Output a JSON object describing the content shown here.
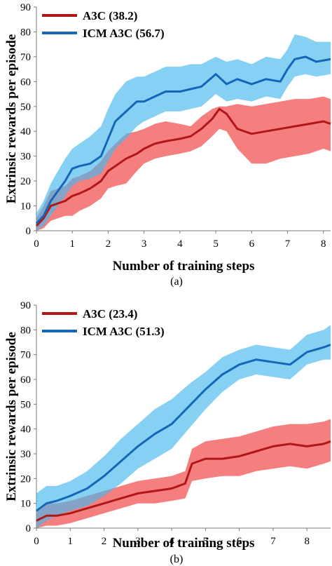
{
  "colors": {
    "a3c_line": "#b01818",
    "a3c_band": "#ef3b3b",
    "icm_line": "#1565b8",
    "icm_band": "#45b8ec",
    "axis": "#7a7a7a"
  },
  "chart_data": [
    {
      "type": "line",
      "caption": "(a)",
      "xlabel": "Number of training steps",
      "ylabel": "Extrinsic rewards per episode",
      "xlim": [
        0,
        8.2
      ],
      "ylim": [
        0,
        90
      ],
      "xticks": [
        "0",
        "1",
        "2",
        "3",
        "4",
        "5",
        "6",
        "7",
        "8"
      ],
      "yticks": [
        "0",
        "10",
        "20",
        "30",
        "40",
        "50",
        "60",
        "70",
        "80",
        "90"
      ],
      "legend_position": "top-left",
      "series": [
        {
          "name": "A3C (38.2)",
          "color": "#b01818",
          "band_color": "#ef3b3b",
          "x": [
            0,
            0.2,
            0.4,
            0.6,
            0.8,
            1.0,
            1.2,
            1.5,
            1.8,
            2.0,
            2.2,
            2.5,
            2.8,
            3.0,
            3.3,
            3.6,
            4.0,
            4.3,
            4.6,
            4.9,
            5.1,
            5.3,
            5.6,
            6.0,
            6.4,
            6.8,
            7.2,
            7.6,
            8.0,
            8.2
          ],
          "values": [
            2,
            5,
            10,
            11,
            12,
            14,
            15,
            17,
            20,
            24,
            26,
            29,
            31,
            33,
            35,
            36,
            37,
            38,
            41,
            45,
            49,
            47,
            41,
            39,
            40,
            41,
            42,
            43,
            44,
            43
          ],
          "lower": [
            0,
            1,
            4,
            5,
            6,
            6,
            8,
            10,
            13,
            17,
            18,
            19,
            24,
            27,
            29,
            30,
            31,
            32,
            34,
            38,
            41,
            40,
            33,
            27,
            27,
            29,
            30,
            31,
            33,
            32
          ],
          "upper": [
            5,
            10,
            16,
            17,
            18,
            21,
            22,
            24,
            28,
            32,
            35,
            39,
            40,
            41,
            43,
            44,
            43,
            42,
            46,
            49,
            50,
            50,
            51,
            50,
            51,
            52,
            53,
            53,
            54,
            53
          ]
        },
        {
          "name": "ICM A3C (56.7)",
          "color": "#1565b8",
          "band_color": "#45b8ec",
          "x": [
            0,
            0.2,
            0.4,
            0.6,
            0.8,
            1.0,
            1.2,
            1.5,
            1.8,
            2.0,
            2.2,
            2.5,
            2.8,
            3.0,
            3.3,
            3.6,
            4.0,
            4.3,
            4.6,
            5.0,
            5.3,
            5.6,
            6.0,
            6.4,
            6.8,
            7.0,
            7.2,
            7.5,
            7.8,
            8.2
          ],
          "values": [
            3,
            6,
            12,
            16,
            20,
            25,
            26,
            27,
            30,
            37,
            44,
            48,
            52,
            52,
            54,
            56,
            56,
            57,
            58,
            63,
            59,
            61,
            59,
            61,
            60,
            65,
            69,
            70,
            68,
            69
          ],
          "lower": [
            0,
            2,
            6,
            10,
            14,
            18,
            20,
            21,
            23,
            28,
            33,
            37,
            42,
            44,
            46,
            48,
            48,
            49,
            50,
            55,
            52,
            53,
            52,
            54,
            53,
            58,
            62,
            63,
            62,
            63
          ],
          "upper": [
            7,
            12,
            19,
            24,
            29,
            33,
            35,
            38,
            42,
            49,
            55,
            60,
            62,
            62,
            64,
            66,
            66,
            67,
            67,
            70,
            68,
            69,
            67,
            70,
            69,
            73,
            79,
            78,
            76,
            76
          ]
        }
      ]
    },
    {
      "type": "line",
      "caption": "(b)",
      "xlabel": "Number of training steps",
      "ylabel": "Extrinsic rewards per episode",
      "xlim": [
        0,
        8.7
      ],
      "ylim": [
        0,
        90
      ],
      "xticks": [
        "0",
        "1",
        "2",
        "3",
        "4",
        "5",
        "6",
        "7",
        "8"
      ],
      "yticks": [
        "0",
        "10",
        "20",
        "30",
        "40",
        "50",
        "60",
        "70",
        "80",
        "90"
      ],
      "legend_position": "top-left",
      "series": [
        {
          "name": "A3C (23.4)",
          "color": "#b01818",
          "band_color": "#ef3b3b",
          "x": [
            0,
            0.3,
            0.6,
            1.0,
            1.5,
            2.0,
            2.5,
            3.0,
            3.5,
            4.0,
            4.4,
            4.6,
            5.0,
            5.5,
            6.0,
            6.5,
            7.0,
            7.5,
            8.0,
            8.5,
            8.7
          ],
          "values": [
            3,
            5,
            5,
            6,
            8,
            10,
            12,
            14,
            15,
            16,
            18,
            26,
            28,
            28,
            29,
            31,
            33,
            34,
            33,
            34,
            35
          ],
          "lower": [
            0,
            1,
            1,
            2,
            4,
            6,
            8,
            10,
            10,
            11,
            12,
            19,
            20,
            21,
            21,
            23,
            24,
            25,
            24,
            26,
            27
          ],
          "upper": [
            7,
            10,
            10,
            11,
            13,
            15,
            17,
            19,
            20,
            21,
            23,
            32,
            35,
            36,
            37,
            39,
            41,
            42,
            42,
            43,
            44
          ]
        },
        {
          "name": "ICM A3C (51.3)",
          "color": "#1565b8",
          "band_color": "#45b8ec",
          "x": [
            0,
            0.3,
            0.6,
            1.0,
            1.5,
            2.0,
            2.5,
            3.0,
            3.5,
            4.0,
            4.5,
            5.0,
            5.5,
            6.0,
            6.5,
            7.0,
            7.5,
            8.0,
            8.5,
            8.7
          ],
          "values": [
            7,
            10,
            11,
            13,
            16,
            21,
            27,
            33,
            38,
            42,
            49,
            56,
            62,
            66,
            68,
            67,
            66,
            71,
            73,
            74
          ],
          "lower": [
            0,
            3,
            5,
            7,
            9,
            13,
            18,
            24,
            28,
            32,
            40,
            48,
            55,
            60,
            62,
            61,
            60,
            66,
            68,
            68
          ],
          "upper": [
            14,
            17,
            17,
            19,
            23,
            29,
            36,
            42,
            48,
            52,
            58,
            63,
            69,
            72,
            74,
            73,
            72,
            78,
            80,
            82
          ]
        }
      ]
    }
  ]
}
